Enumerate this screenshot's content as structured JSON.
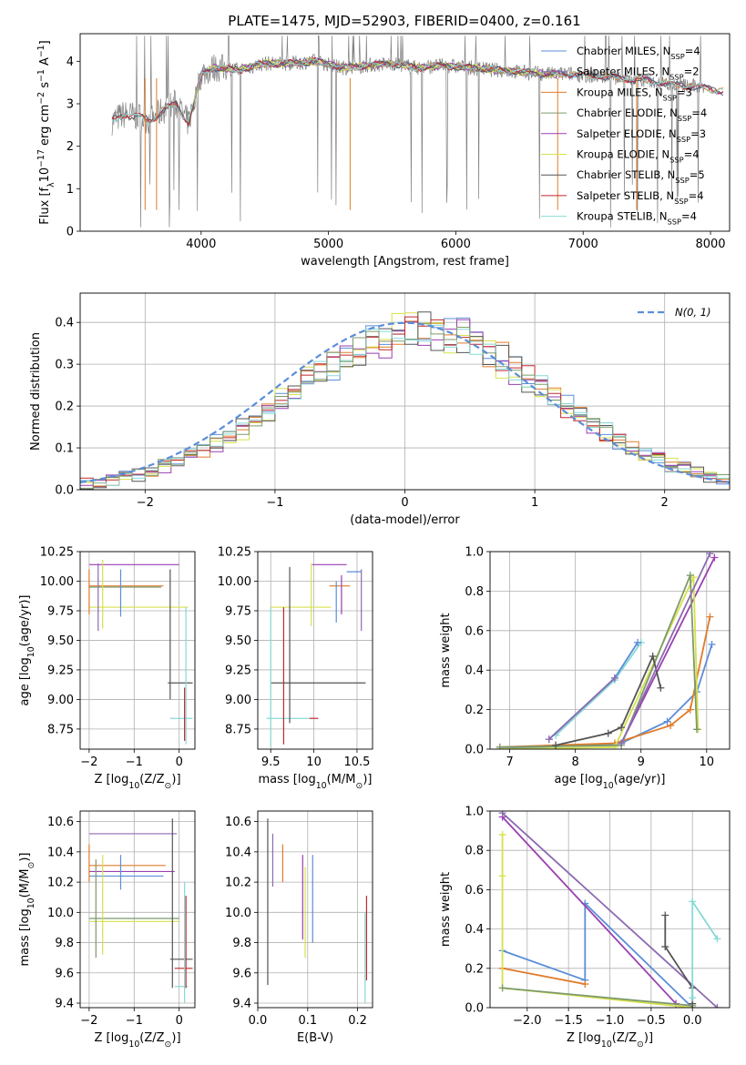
{
  "figure_title": "PLATE=1475, MJD=52903, FIBERID=0400, z=0.161",
  "colors": {
    "chabrier_miles": "#5b8ed8",
    "salpeter_miles": "#8c6bb1",
    "kroupa_miles": "#e07b2a",
    "chabrier_elodie": "#7d9a6e",
    "salpeter_elodie": "#9a3fb0",
    "kroupa_elodie": "#d7e04b",
    "chabrier_stelib": "#555555",
    "salpeter_stelib": "#c0282d",
    "kroupa_stelib": "#86d9d5",
    "data": "#808080",
    "normal_curve": "#5b8ed8"
  },
  "chart_data": [
    {
      "id": "spectrum",
      "type": "line",
      "xlabel": "wavelength [Angstrom, rest frame]",
      "ylabel": "Flux [f_λ10^-17 erg cm^-2 s^-1 A^-1]",
      "xlim": [
        3050,
        8150
      ],
      "ylim": [
        0,
        4.65
      ],
      "xticks": [
        4000,
        5000,
        6000,
        7000,
        8000
      ],
      "yticks": [
        0,
        1,
        2,
        3,
        4
      ],
      "continuum": [
        [
          3300,
          2.6
        ],
        [
          3400,
          2.75
        ],
        [
          3500,
          2.7
        ],
        [
          3600,
          2.6
        ],
        [
          3700,
          2.85
        ],
        [
          3800,
          3.0
        ],
        [
          3900,
          2.55
        ],
        [
          3950,
          3.1
        ],
        [
          4000,
          3.7
        ],
        [
          4100,
          3.85
        ],
        [
          4300,
          3.8
        ],
        [
          4500,
          3.95
        ],
        [
          4700,
          3.95
        ],
        [
          4900,
          4.0
        ],
        [
          5100,
          3.85
        ],
        [
          5300,
          3.9
        ],
        [
          5500,
          3.95
        ],
        [
          5700,
          3.85
        ],
        [
          5900,
          3.9
        ],
        [
          6100,
          3.85
        ],
        [
          6300,
          3.8
        ],
        [
          6500,
          3.75
        ],
        [
          6700,
          3.7
        ],
        [
          6900,
          3.7
        ],
        [
          7100,
          3.65
        ],
        [
          7300,
          3.6
        ],
        [
          7500,
          3.55
        ],
        [
          7700,
          3.45
        ],
        [
          7900,
          3.4
        ],
        [
          8100,
          3.3
        ]
      ],
      "legend": [
        {
          "label": "Chabrier MILES, N_SSP=4",
          "color_key": "chabrier_miles"
        },
        {
          "label": "Salpeter MILES, N_SSP=2",
          "color_key": "salpeter_miles"
        },
        {
          "label": "Kroupa MILES, N_SSP=3",
          "color_key": "kroupa_miles"
        },
        {
          "label": "Chabrier ELODIE, N_SSP=4",
          "color_key": "chabrier_elodie"
        },
        {
          "label": "Salpeter ELODIE, N_SSP=3",
          "color_key": "salpeter_elodie"
        },
        {
          "label": "Kroupa ELODIE, N_SSP=4",
          "color_key": "kroupa_elodie"
        },
        {
          "label": "Chabrier STELIB, N_SSP=5",
          "color_key": "chabrier_stelib"
        },
        {
          "label": "Salpeter STELIB, N_SSP=4",
          "color_key": "salpeter_stelib"
        },
        {
          "label": "Kroupa STELIB, N_SSP=4",
          "color_key": "kroupa_stelib"
        }
      ]
    },
    {
      "id": "residuals",
      "type": "line",
      "xlabel": "(data-model)/error",
      "ylabel": "Normed distribution",
      "xlim": [
        -2.5,
        2.5
      ],
      "ylim": [
        0,
        0.47
      ],
      "xticks": [
        -2,
        -1,
        0,
        1,
        2
      ],
      "yticks": [
        0.0,
        0.1,
        0.2,
        0.3,
        0.4
      ],
      "legend": "N(0, 1)",
      "bin_width": 0.1,
      "hist_series": [
        "chabrier_miles",
        "kroupa_miles",
        "salpeter_elodie",
        "kroupa_elodie",
        "chabrier_stelib",
        "salpeter_stelib",
        "kroupa_stelib",
        "chabrier_elodie"
      ]
    },
    {
      "id": "age_vs_Z",
      "type": "scatter",
      "xlabel": "Z [log10(Z/Z⊙)]",
      "ylabel": "age [log10(age/yr)]",
      "xlim": [
        -2.2,
        0.35
      ],
      "ylim": [
        8.58,
        10.25
      ],
      "xticks": [
        -2,
        -1,
        0
      ],
      "yticks": [
        8.75,
        9.0,
        9.25,
        9.5,
        9.75,
        10.0,
        10.25
      ],
      "hlines": [
        {
          "x": [
            -2.0,
            0.0
          ],
          "y": 10.14,
          "c": "salpeter_elodie"
        },
        {
          "x": [
            -2.0,
            -0.35
          ],
          "y": 9.96,
          "c": "kroupa_miles"
        },
        {
          "x": [
            -2.0,
            -0.4
          ],
          "y": 9.95,
          "c": "chabrier_elodie"
        },
        {
          "x": [
            -2.0,
            0.2
          ],
          "y": 9.78,
          "c": "kroupa_elodie"
        },
        {
          "x": [
            -0.25,
            0.3
          ],
          "y": 9.14,
          "c": "chabrier_stelib"
        },
        {
          "x": [
            -0.2,
            0.3
          ],
          "y": 8.84,
          "c": "kroupa_stelib"
        }
      ],
      "vlines": [
        {
          "x": -2.0,
          "y": [
            9.72,
            10.1
          ],
          "c": "kroupa_miles"
        },
        {
          "x": -1.8,
          "y": [
            9.58,
            10.15
          ],
          "c": "salpeter_miles"
        },
        {
          "x": -1.7,
          "y": [
            9.6,
            10.18
          ],
          "c": "kroupa_elodie"
        },
        {
          "x": -1.3,
          "y": [
            9.7,
            10.1
          ],
          "c": "chabrier_miles"
        },
        {
          "x": -0.2,
          "y": [
            9.0,
            10.1
          ],
          "c": "chabrier_stelib"
        },
        {
          "x": 0.15,
          "y": [
            8.62,
            9.78
          ],
          "c": "kroupa_stelib"
        },
        {
          "x": 0.12,
          "y": [
            8.65,
            9.1
          ],
          "c": "salpeter_stelib"
        }
      ]
    },
    {
      "id": "age_vs_mass",
      "type": "scatter",
      "xlabel": "mass [log10(M/M⊙)]",
      "ylabel": "",
      "xlim": [
        9.35,
        10.68
      ],
      "ylim": [
        8.58,
        10.25
      ],
      "xticks": [
        9.5,
        10.0,
        10.5
      ],
      "yticks": [
        8.75,
        9.0,
        9.25,
        9.5,
        9.75,
        10.0,
        10.25
      ],
      "hlines": [
        {
          "x": [
            9.98,
            10.38
          ],
          "y": 10.14,
          "c": "salpeter_elodie"
        },
        {
          "x": [
            10.38,
            10.55
          ],
          "y": 10.08,
          "c": "chabrier_miles"
        },
        {
          "x": [
            10.18,
            10.42
          ],
          "y": 9.96,
          "c": "kroupa_miles"
        },
        {
          "x": [
            9.5,
            10.2
          ],
          "y": 9.78,
          "c": "kroupa_elodie"
        },
        {
          "x": [
            9.5,
            10.6
          ],
          "y": 9.14,
          "c": "chabrier_stelib"
        },
        {
          "x": [
            9.45,
            9.95
          ],
          "y": 8.84,
          "c": "kroupa_stelib"
        },
        {
          "x": [
            9.95,
            10.05
          ],
          "y": 8.84,
          "c": "salpeter_stelib"
        }
      ],
      "vlines": [
        {
          "x": 9.5,
          "y": [
            8.6,
            9.78
          ],
          "c": "kroupa_stelib"
        },
        {
          "x": 9.65,
          "y": [
            8.62,
            9.78
          ],
          "c": "salpeter_stelib"
        },
        {
          "x": 9.72,
          "y": [
            8.8,
            10.12
          ],
          "c": "chabrier_stelib"
        },
        {
          "x": 9.97,
          "y": [
            9.62,
            10.15
          ],
          "c": "kroupa_elodie"
        },
        {
          "x": 10.26,
          "y": [
            9.65,
            10.0
          ],
          "c": "chabrier_miles"
        },
        {
          "x": 10.32,
          "y": [
            9.72,
            10.05
          ],
          "c": "salpeter_elodie"
        },
        {
          "x": 10.55,
          "y": [
            9.58,
            10.1
          ],
          "c": "salpeter_miles"
        }
      ]
    },
    {
      "id": "weight_vs_age",
      "type": "line",
      "xlabel": "age [log10(age/yr)]",
      "ylabel": "mass weight",
      "xlim": [
        6.7,
        10.35
      ],
      "ylim": [
        0,
        1.0
      ],
      "xticks": [
        7,
        8,
        9,
        10
      ],
      "yticks": [
        0.0,
        0.2,
        0.4,
        0.6,
        0.8,
        1.0
      ],
      "series": [
        {
          "c": "chabrier_miles",
          "x": [
            6.85,
            8.7,
            9.4,
            9.85,
            10.08
          ],
          "y": [
            0.0,
            0.03,
            0.14,
            0.29,
            0.53
          ]
        },
        {
          "c": "kroupa_miles",
          "x": [
            6.85,
            8.6,
            9.45,
            9.75,
            10.05
          ],
          "y": [
            0.01,
            0.03,
            0.12,
            0.2,
            0.67
          ]
        },
        {
          "c": "salpeter_elodie",
          "x": [
            8.7,
            10.12
          ],
          "y": [
            0.03,
            0.97
          ]
        },
        {
          "c": "kroupa_elodie",
          "x": [
            6.85,
            8.6,
            9.8,
            9.87
          ],
          "y": [
            0.0,
            0.01,
            0.87,
            0.1
          ]
        },
        {
          "c": "chabrier_elodie",
          "x": [
            6.85,
            8.7,
            9.75,
            9.85
          ],
          "y": [
            0.01,
            0.02,
            0.88,
            0.1
          ]
        },
        {
          "c": "chabrier_stelib",
          "x": [
            7.7,
            8.5,
            8.7,
            9.18,
            9.3
          ],
          "y": [
            0.02,
            0.08,
            0.11,
            0.47,
            0.31
          ]
        },
        {
          "c": "kroupa_stelib",
          "x": [
            7.7,
            8.6,
            9.0
          ],
          "y": [
            0.07,
            0.35,
            0.54
          ]
        },
        {
          "c": "chabrier_miles",
          "x": [
            7.6,
            8.6,
            8.95
          ],
          "y": [
            0.05,
            0.36,
            0.54
          ]
        },
        {
          "c": "salpeter_miles",
          "x": [
            7.6,
            8.6
          ],
          "y": [
            0.05,
            0.36
          ]
        },
        {
          "c": "salpeter_miles",
          "x": [
            8.7,
            10.05
          ],
          "y": [
            0.03,
            0.99
          ]
        }
      ]
    },
    {
      "id": "mass_vs_Z",
      "type": "scatter",
      "xlabel": "Z [log10(Z/Z⊙)]",
      "ylabel": "mass [log10(M/M⊙)]",
      "xlim": [
        -2.2,
        0.35
      ],
      "ylim": [
        9.37,
        10.67
      ],
      "xticks": [
        -2,
        -1,
        0
      ],
      "yticks": [
        9.4,
        9.6,
        9.8,
        10.0,
        10.2,
        10.4,
        10.6
      ],
      "hlines": [
        {
          "x": [
            -2.0,
            -0.05
          ],
          "y": 10.52,
          "c": "salpeter_miles"
        },
        {
          "x": [
            -2.0,
            -0.3
          ],
          "y": 10.31,
          "c": "kroupa_miles"
        },
        {
          "x": [
            -2.0,
            -0.1
          ],
          "y": 10.27,
          "c": "salpeter_elodie"
        },
        {
          "x": [
            -2.0,
            -0.35
          ],
          "y": 10.24,
          "c": "chabrier_miles"
        },
        {
          "x": [
            -2.0,
            0.0
          ],
          "y": 9.96,
          "c": "chabrier_elodie"
        },
        {
          "x": [
            -2.0,
            0.0
          ],
          "y": 9.94,
          "c": "kroupa_elodie"
        },
        {
          "x": [
            -0.2,
            0.3
          ],
          "y": 9.69,
          "c": "chabrier_stelib"
        },
        {
          "x": [
            -0.1,
            0.3
          ],
          "y": 9.63,
          "c": "salpeter_stelib"
        },
        {
          "x": [
            -0.1,
            0.2
          ],
          "y": 9.51,
          "c": "kroupa_stelib"
        }
      ],
      "vlines": [
        {
          "x": -2.0,
          "y": [
            10.2,
            10.45
          ],
          "c": "kroupa_miles"
        },
        {
          "x": -1.85,
          "y": [
            9.7,
            10.35
          ],
          "c": "chabrier_elodie"
        },
        {
          "x": -1.7,
          "y": [
            9.72,
            10.38
          ],
          "c": "kroupa_elodie"
        },
        {
          "x": -1.3,
          "y": [
            10.15,
            10.38
          ],
          "c": "chabrier_miles"
        },
        {
          "x": -0.15,
          "y": [
            9.5,
            10.62
          ],
          "c": "chabrier_stelib"
        },
        {
          "x": 0.12,
          "y": [
            9.4,
            10.2
          ],
          "c": "kroupa_stelib"
        },
        {
          "x": 0.15,
          "y": [
            9.5,
            10.11
          ],
          "c": "salpeter_stelib"
        }
      ]
    },
    {
      "id": "mass_vs_ebv",
      "type": "scatter",
      "xlabel": "E(B-V)",
      "ylabel": "",
      "xlim": [
        0.0,
        0.23
      ],
      "ylim": [
        9.37,
        10.67
      ],
      "xticks": [
        0.0,
        0.1,
        0.2
      ],
      "yticks": [
        9.4,
        9.6,
        9.8,
        10.0,
        10.2,
        10.4,
        10.6
      ],
      "vlines": [
        {
          "x": 0.02,
          "y": [
            9.52,
            10.62
          ],
          "c": "chabrier_stelib"
        },
        {
          "x": 0.03,
          "y": [
            10.17,
            10.52
          ],
          "c": "salpeter_miles"
        },
        {
          "x": 0.05,
          "y": [
            10.2,
            10.45
          ],
          "c": "kroupa_miles"
        },
        {
          "x": 0.09,
          "y": [
            9.82,
            10.38
          ],
          "c": "salpeter_elodie"
        },
        {
          "x": 0.095,
          "y": [
            9.7,
            10.3
          ],
          "c": "kroupa_elodie"
        },
        {
          "x": 0.11,
          "y": [
            9.8,
            10.38
          ],
          "c": "chabrier_miles"
        },
        {
          "x": 0.215,
          "y": [
            9.4,
            10.0
          ],
          "c": "kroupa_stelib"
        },
        {
          "x": 0.218,
          "y": [
            9.55,
            10.11
          ],
          "c": "salpeter_stelib"
        }
      ]
    },
    {
      "id": "weight_vs_Z",
      "type": "line",
      "xlabel": "Z [log10(Z/Z⊙)]",
      "ylabel": "mass weight",
      "xlim": [
        -2.45,
        0.45
      ],
      "ylim": [
        0,
        1.0
      ],
      "xticks": [
        -2.0,
        -1.5,
        -1.0,
        -0.5,
        0.0
      ],
      "yticks": [
        0.0,
        0.2,
        0.4,
        0.6,
        0.8,
        1.0
      ],
      "series": [
        {
          "c": "chabrier_miles",
          "x": [
            -2.3,
            -1.3,
            -1.3,
            0.0
          ],
          "y": [
            0.29,
            0.14,
            0.53,
            0.0
          ]
        },
        {
          "c": "kroupa_miles",
          "x": [
            -2.3,
            -1.3
          ],
          "y": [
            0.2,
            0.12
          ]
        },
        {
          "c": "salpeter_elodie",
          "x": [
            -2.3,
            -0.2
          ],
          "y": [
            0.97,
            0.02
          ]
        },
        {
          "c": "salpeter_miles",
          "x": [
            -2.3,
            0.3
          ],
          "y": [
            0.99,
            0.0
          ]
        },
        {
          "c": "kroupa_elodie",
          "x": [
            -2.3,
            -2.3,
            -2.3,
            0.0
          ],
          "y": [
            0.88,
            0.67,
            0.1,
            0.0
          ]
        },
        {
          "c": "chabrier_elodie",
          "x": [
            -2.3,
            0.0
          ],
          "y": [
            0.1,
            0.01
          ]
        },
        {
          "c": "chabrier_stelib",
          "x": [
            -0.33,
            -0.33,
            0.0,
            0.0
          ],
          "y": [
            0.47,
            0.31,
            0.1,
            0.02
          ]
        },
        {
          "c": "kroupa_stelib",
          "x": [
            0.0,
            0.0,
            0.3
          ],
          "y": [
            0.05,
            0.54,
            0.35
          ]
        }
      ]
    }
  ]
}
